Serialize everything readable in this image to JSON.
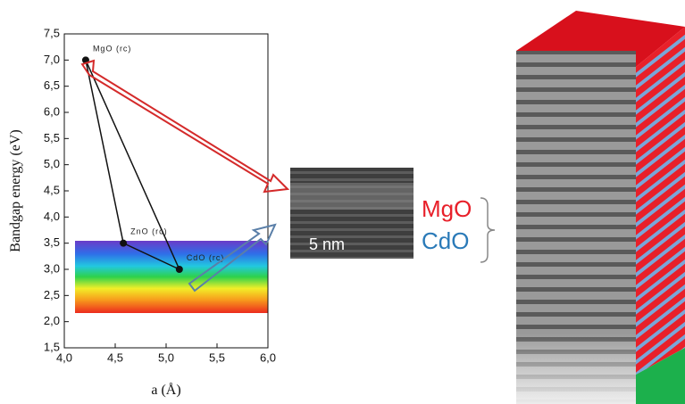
{
  "chart_data": {
    "type": "scatter",
    "x_label": "a (Å)",
    "y_label": "Bandgap energy (eV)",
    "x": [
      4.21,
      4.58,
      5.13
    ],
    "values": [
      7.0,
      3.5,
      3.0
    ],
    "point_labels": [
      "MgO (rc)",
      "ZnO (rc)",
      "CdO (rc)"
    ],
    "color": "#111111",
    "xlim": [
      4.0,
      6.0
    ],
    "xticks": [
      {
        "value": 4.0,
        "label": "4,0"
      },
      {
        "value": 4.5,
        "label": "4,5"
      },
      {
        "value": 5.0,
        "label": "5,0"
      },
      {
        "value": 5.5,
        "label": "5,5"
      },
      {
        "value": 6.0,
        "label": "6,0"
      }
    ],
    "ylim": [
      1.5,
      7.5
    ],
    "yticks": [
      {
        "value": 1.5,
        "label": "1,5"
      },
      {
        "value": 2.0,
        "label": "2,0"
      },
      {
        "value": 2.5,
        "label": "2,5"
      },
      {
        "value": 3.0,
        "label": "3,0"
      },
      {
        "value": 3.5,
        "label": "3,5"
      },
      {
        "value": 4.0,
        "label": "4,0"
      },
      {
        "value": 4.5,
        "label": "4,5"
      },
      {
        "value": 5.0,
        "label": "5,0"
      },
      {
        "value": 5.5,
        "label": "5,5"
      },
      {
        "value": 6.0,
        "label": "6,0"
      },
      {
        "value": 6.5,
        "label": "6,5"
      },
      {
        "value": 7.0,
        "label": "7,0"
      },
      {
        "value": 7.5,
        "label": "7,5"
      }
    ]
  },
  "tem_image": {
    "scale_bar": "5 nm"
  },
  "layers": [
    {
      "name": "MgO",
      "color": "#e8202a"
    },
    {
      "name": "CdO",
      "color": "#2a7ab8"
    }
  ]
}
